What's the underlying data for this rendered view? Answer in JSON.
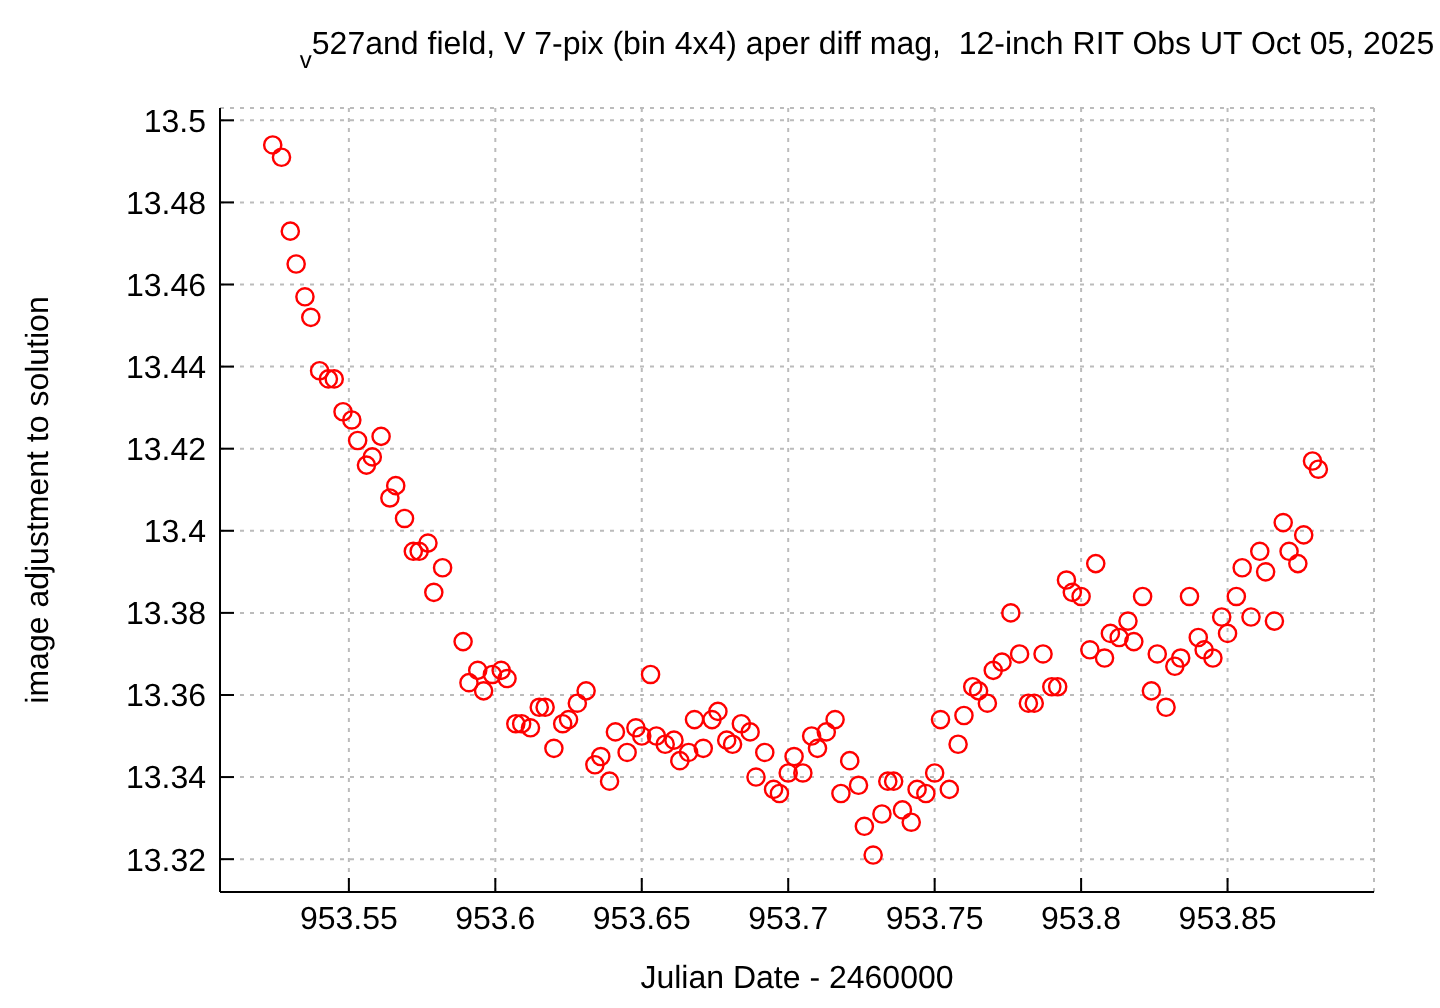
{
  "chart_data": {
    "type": "scatter",
    "title": "$_{v}$527and field, V 7-pix (bin 4x4) aper diff mag,  12-inch RIT Obs UT Oct 05, 2025",
    "xlabel": "Julian Date - 2460000",
    "ylabel": "image adjustment to solution",
    "xlim": [
      953.506,
      953.9
    ],
    "xticks": [
      953.55,
      953.6,
      953.65,
      953.7,
      953.75,
      953.8,
      953.85
    ],
    "ylim": [
      13.312,
      13.503
    ],
    "yticks": [
      13.32,
      13.34,
      13.36,
      13.38,
      13.4,
      13.42,
      13.44,
      13.46,
      13.48,
      13.5
    ],
    "grid": true,
    "marker": "circle",
    "legend": false,
    "series": [
      {
        "color": "#ff0000",
        "x": [
          953.524,
          953.527,
          953.53,
          953.532,
          953.535,
          953.537,
          953.54,
          953.543,
          953.545,
          953.548,
          953.551,
          953.553,
          953.556,
          953.558,
          953.561,
          953.564,
          953.566,
          953.569,
          953.572,
          953.574,
          953.577,
          953.579,
          953.582,
          953.589,
          953.591,
          953.594,
          953.596,
          953.599,
          953.602,
          953.604,
          953.607,
          953.609,
          953.612,
          953.615,
          953.617,
          953.62,
          953.623,
          953.625,
          953.628,
          953.631,
          953.634,
          953.636,
          953.639,
          953.641,
          953.645,
          953.648,
          953.65,
          953.653,
          953.655,
          953.658,
          953.661,
          953.663,
          953.666,
          953.668,
          953.671,
          953.674,
          953.676,
          953.679,
          953.681,
          953.684,
          953.687,
          953.689,
          953.692,
          953.695,
          953.697,
          953.7,
          953.702,
          953.705,
          953.708,
          953.71,
          953.713,
          953.716,
          953.718,
          953.721,
          953.724,
          953.726,
          953.729,
          953.732,
          953.734,
          953.736,
          953.739,
          953.742,
          953.744,
          953.747,
          953.75,
          953.752,
          953.755,
          953.758,
          953.76,
          953.763,
          953.765,
          953.768,
          953.77,
          953.773,
          953.776,
          953.779,
          953.782,
          953.784,
          953.787,
          953.79,
          953.792,
          953.795,
          953.797,
          953.8,
          953.803,
          953.805,
          953.808,
          953.81,
          953.813,
          953.816,
          953.818,
          953.821,
          953.824,
          953.826,
          953.829,
          953.832,
          953.834,
          953.837,
          953.84,
          953.842,
          953.845,
          953.848,
          953.85,
          953.853,
          953.855,
          953.858,
          953.861,
          953.863,
          953.866,
          953.869,
          953.871,
          953.874,
          953.876,
          953.879,
          953.881
        ],
        "values": [
          13.494,
          13.491,
          13.473,
          13.465,
          13.457,
          13.452,
          13.439,
          13.437,
          13.437,
          13.429,
          13.427,
          13.422,
          13.416,
          13.418,
          13.423,
          13.408,
          13.411,
          13.403,
          13.395,
          13.395,
          13.397,
          13.385,
          13.391,
          13.373,
          13.363,
          13.366,
          13.361,
          13.365,
          13.366,
          13.364,
          13.353,
          13.353,
          13.352,
          13.357,
          13.357,
          13.347,
          13.353,
          13.354,
          13.358,
          13.361,
          13.343,
          13.345,
          13.339,
          13.351,
          13.346,
          13.352,
          13.35,
          13.365,
          13.35,
          13.348,
          13.349,
          13.344,
          13.346,
          13.354,
          13.347,
          13.354,
          13.356,
          13.349,
          13.348,
          13.353,
          13.351,
          13.34,
          13.346,
          13.337,
          13.336,
          13.341,
          13.345,
          13.341,
          13.35,
          13.347,
          13.351,
          13.354,
          13.336,
          13.344,
          13.338,
          13.328,
          13.321,
          13.331,
          13.339,
          13.339,
          13.332,
          13.329,
          13.337,
          13.336,
          13.341,
          13.354,
          13.337,
          13.348,
          13.355,
          13.362,
          13.361,
          13.358,
          13.366,
          13.368,
          13.38,
          13.37,
          13.358,
          13.358,
          13.37,
          13.362,
          13.362,
          13.388,
          13.385,
          13.384,
          13.371,
          13.392,
          13.369,
          13.375,
          13.374,
          13.378,
          13.373,
          13.384,
          13.361,
          13.37,
          13.357,
          13.367,
          13.369,
          13.384,
          13.374,
          13.371,
          13.369,
          13.379,
          13.375,
          13.384,
          13.391,
          13.379,
          13.395,
          13.39,
          13.378,
          13.402,
          13.395,
          13.392,
          13.399,
          13.417,
          13.415
        ]
      }
    ]
  }
}
